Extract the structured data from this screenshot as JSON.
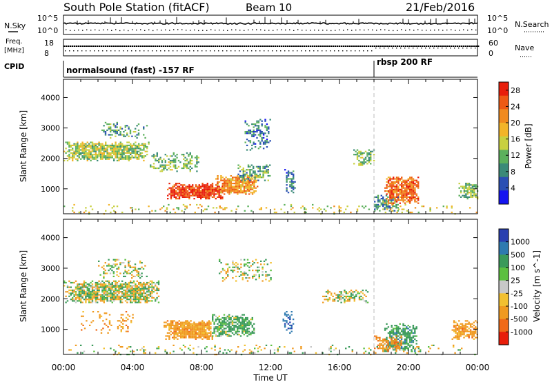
{
  "header": {
    "station": "South Pole Station (fitACF)",
    "beam": "Beam 10",
    "date": "21/Feb/2016"
  },
  "strip_labels": {
    "nsky": "N.Sky",
    "nsearch": "N.Search",
    "freq_top": "Freq.",
    "freq_unit": "[MHz]",
    "nave": "Nave",
    "cpid": "CPID"
  },
  "strip_ticks": {
    "nsky_hi": "10^5",
    "nsky_lo": "10^0",
    "nsearch_hi": "10^5",
    "nsearch_lo": "10^0",
    "freq_hi": "18",
    "freq_lo": "8",
    "nave_hi": "60",
    "nave_lo": "0"
  },
  "cpid_segments": [
    {
      "label": "normalsound (fast) -157 RF",
      "start": "00:00",
      "end": "18:00"
    },
    {
      "label": "rbsp 200 RF",
      "start": "18:00",
      "end": "24:00"
    }
  ],
  "axes": {
    "xlabel": "Time UT",
    "ylabel": "Slant Range [km]",
    "xticks": [
      "00:00",
      "04:00",
      "08:00",
      "12:00",
      "16:00",
      "20:00",
      "00:00"
    ],
    "yticks": [
      "1000",
      "2000",
      "3000",
      "4000"
    ]
  },
  "colorbars": {
    "power": {
      "label": "Power [dB]",
      "ticks": [
        "4",
        "8",
        "12",
        "16",
        "20",
        "24",
        "28"
      ],
      "colors": [
        "#1414f0",
        "#2a4fb4",
        "#3a8a78",
        "#5cb05c",
        "#c8d040",
        "#f2b428",
        "#f08a1e",
        "#ee5a14",
        "#e81e0a"
      ]
    },
    "velocity": {
      "label": "Velocity [m s^-1]",
      "ticks": [
        "1000",
        "500",
        "100",
        "25",
        "-25",
        "-100",
        "-500",
        "-1000"
      ],
      "colors": [
        "#2a40b0",
        "#2e7ab0",
        "#3a9a5a",
        "#5cc040",
        "#c8c8c8",
        "#f2c030",
        "#f09a20",
        "#f06a18",
        "#e81e0a"
      ]
    }
  },
  "chart_data": [
    {
      "type": "heatmap",
      "name": "power",
      "xlabel": "Time UT",
      "ylabel": "Slant Range [km]",
      "xlim": [
        0,
        24
      ],
      "ylim": [
        180,
        4600
      ],
      "colorbar_label": "Power [dB]",
      "colorbar_range": [
        0,
        30
      ],
      "regions": [
        {
          "t0": 0.0,
          "t1": 4.9,
          "r0": 1950,
          "r1": 2550,
          "value": 14,
          "density": 0.85
        },
        {
          "t0": 2.2,
          "t1": 4.8,
          "r0": 2700,
          "r1": 3200,
          "value": 10,
          "density": 0.35
        },
        {
          "t0": 5.0,
          "t1": 7.8,
          "r0": 1600,
          "r1": 2200,
          "value": 12,
          "density": 0.45
        },
        {
          "t0": 6.0,
          "t1": 9.2,
          "r0": 700,
          "r1": 1200,
          "value": 27,
          "density": 0.95
        },
        {
          "t0": 8.8,
          "t1": 11.2,
          "r0": 850,
          "r1": 1450,
          "value": 21,
          "density": 0.85
        },
        {
          "t0": 10.0,
          "t1": 12.0,
          "r0": 1300,
          "r1": 1800,
          "value": 10,
          "density": 0.55
        },
        {
          "t0": 10.5,
          "t1": 12.0,
          "r0": 2300,
          "r1": 3300,
          "value": 7,
          "density": 0.35
        },
        {
          "t0": 12.8,
          "t1": 13.4,
          "r0": 900,
          "r1": 1700,
          "value": 8,
          "density": 0.5
        },
        {
          "t0": 16.8,
          "t1": 18.0,
          "r0": 1800,
          "r1": 2300,
          "value": 12,
          "density": 0.5
        },
        {
          "t0": 18.0,
          "t1": 19.4,
          "r0": 300,
          "r1": 800,
          "value": 9,
          "density": 0.6
        },
        {
          "t0": 18.6,
          "t1": 20.6,
          "r0": 550,
          "r1": 1400,
          "value": 24,
          "density": 0.85
        },
        {
          "t0": 22.9,
          "t1": 24.0,
          "r0": 700,
          "r1": 1200,
          "value": 12,
          "density": 0.75
        },
        {
          "t0": 0.0,
          "t1": 24.0,
          "r0": 200,
          "r1": 500,
          "value": 16,
          "density": 0.12
        }
      ]
    },
    {
      "type": "heatmap",
      "name": "velocity",
      "xlabel": "Time UT",
      "ylabel": "Slant Range [km]",
      "xlim": [
        0,
        24
      ],
      "ylim": [
        180,
        4600
      ],
      "colorbar_label": "Velocity [m s^-1]",
      "colorbar_range": [
        -1000,
        1000
      ],
      "regions": [
        {
          "t0": 0.0,
          "t1": 5.5,
          "r0": 1900,
          "r1": 2600,
          "value": 0,
          "density": 0.85
        },
        {
          "t0": 2.0,
          "t1": 4.8,
          "r0": 2700,
          "r1": 3300,
          "value": 0,
          "density": 0.3
        },
        {
          "t0": 5.8,
          "t1": 8.6,
          "r0": 700,
          "r1": 1300,
          "value": -300,
          "density": 0.9
        },
        {
          "t0": 8.6,
          "t1": 11.0,
          "r0": 800,
          "r1": 1500,
          "value": 200,
          "density": 0.8
        },
        {
          "t0": 9.0,
          "t1": 12.0,
          "r0": 2600,
          "r1": 3300,
          "value": 0,
          "density": 0.3
        },
        {
          "t0": 12.7,
          "t1": 13.3,
          "r0": 900,
          "r1": 1600,
          "value": 900,
          "density": 0.5
        },
        {
          "t0": 15.0,
          "t1": 17.6,
          "r0": 1900,
          "r1": 2300,
          "value": 0,
          "density": 0.55
        },
        {
          "t0": 1.0,
          "t1": 4.0,
          "r0": 900,
          "r1": 1600,
          "value": -300,
          "density": 0.2
        },
        {
          "t0": 18.5,
          "t1": 20.5,
          "r0": 300,
          "r1": 1200,
          "value": 300,
          "density": 0.7
        },
        {
          "t0": 18.0,
          "t1": 19.6,
          "r0": 300,
          "r1": 800,
          "value": -400,
          "density": 0.6
        },
        {
          "t0": 22.5,
          "t1": 24.0,
          "r0": 700,
          "r1": 1300,
          "value": -300,
          "density": 0.75
        },
        {
          "t0": 0.0,
          "t1": 24.0,
          "r0": 200,
          "r1": 500,
          "value": 0,
          "density": 0.12
        }
      ]
    }
  ]
}
